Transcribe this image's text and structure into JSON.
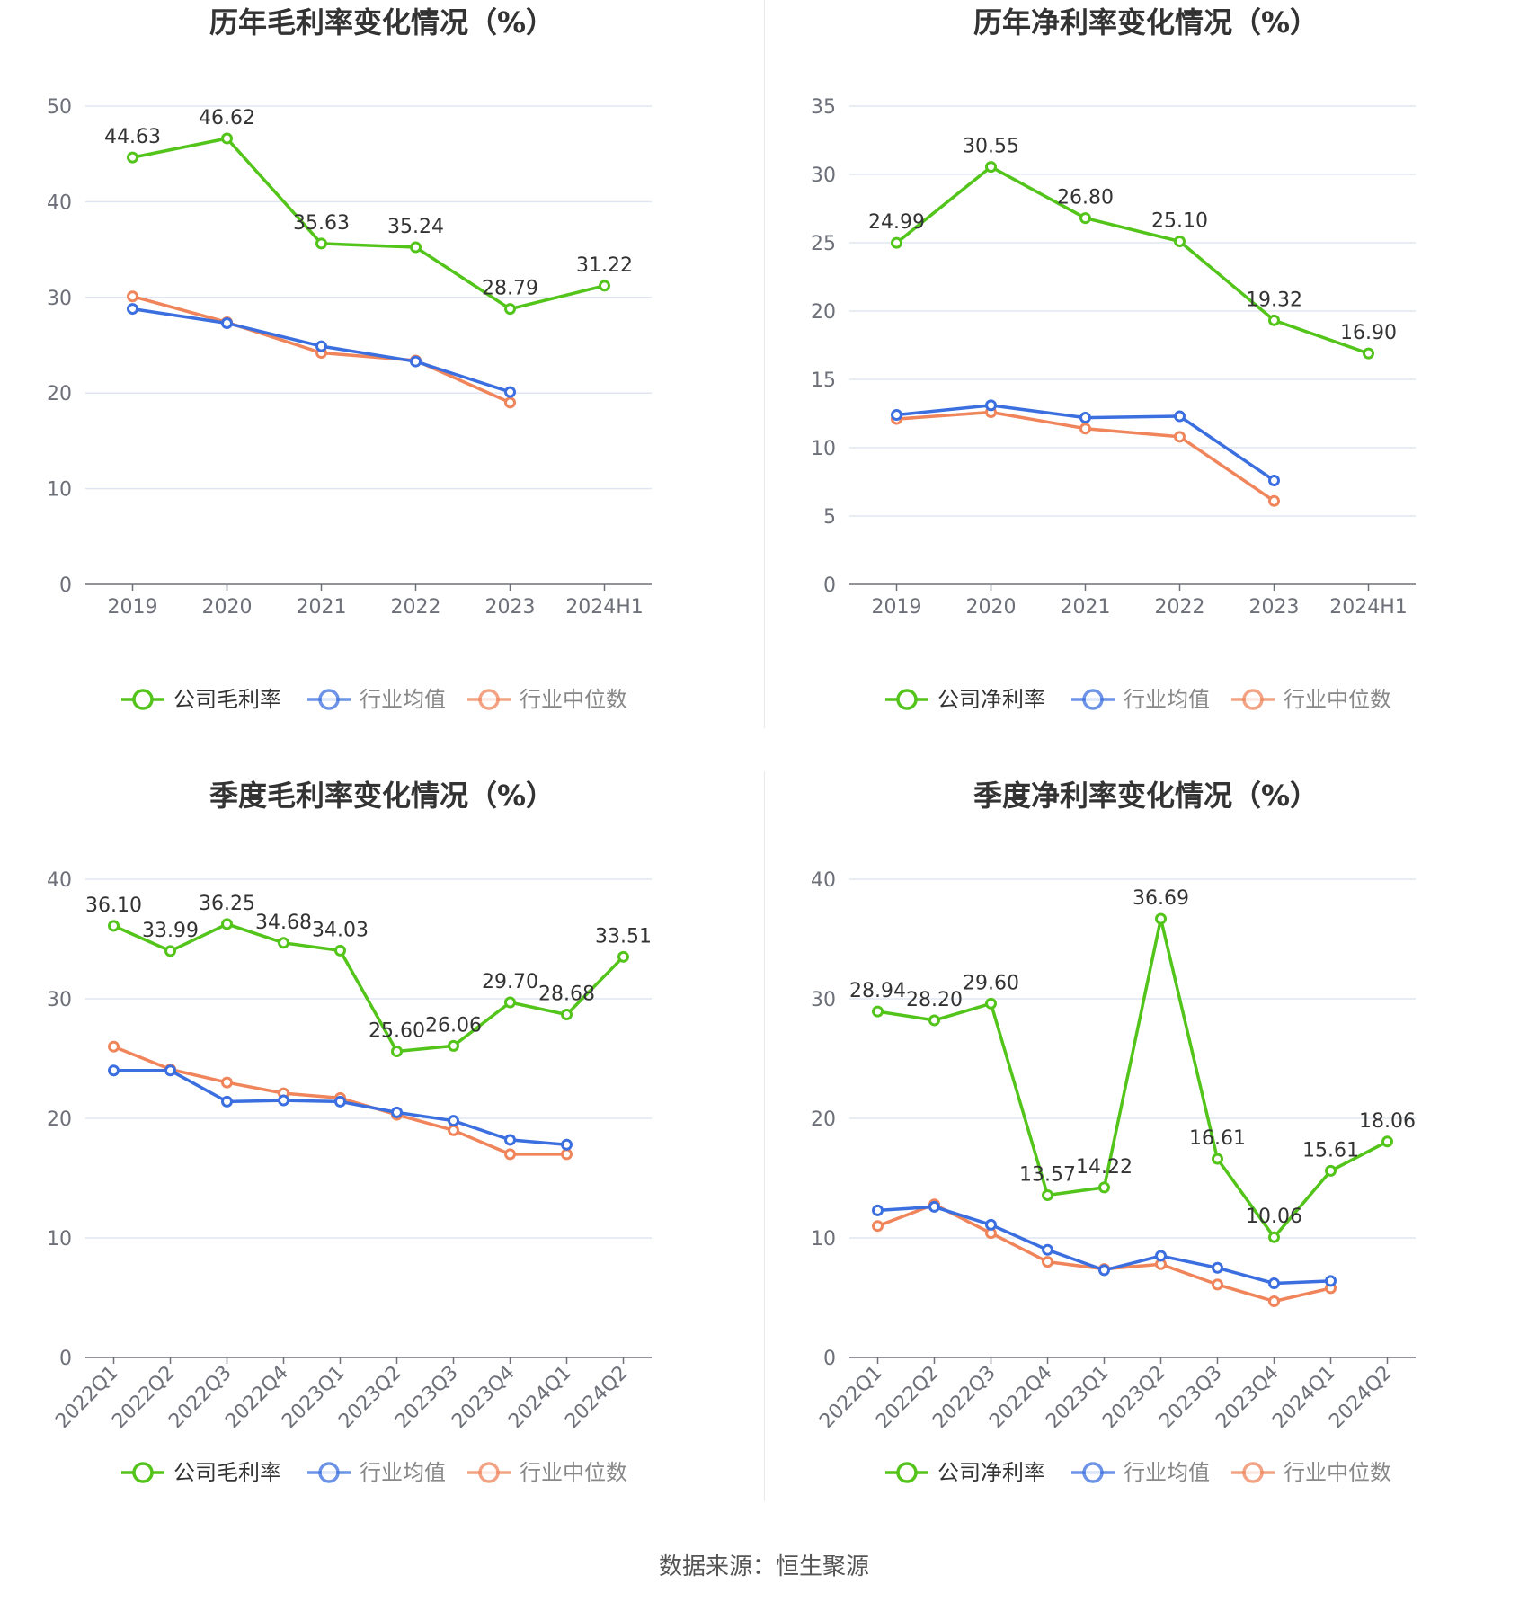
{
  "source": "数据来源：恒生聚源",
  "colors": {
    "company": "#52c41a",
    "avg": "#3b6fe0",
    "median": "#f0845a",
    "grid": "#e0e6f1",
    "axis": "#6e7079",
    "label": "#333333",
    "tick": "#6e7079"
  },
  "chart_data": [
    {
      "type": "line",
      "title": "历年毛利率变化情况（%）",
      "categories": [
        "2019",
        "2020",
        "2021",
        "2022",
        "2023",
        "2024H1"
      ],
      "ylim": [
        0,
        50
      ],
      "yticks": [
        0,
        10,
        20,
        30,
        40,
        50
      ],
      "rotate_x": false,
      "series": [
        {
          "name": "公司毛利率",
          "key": "company",
          "labels": true,
          "values": [
            44.63,
            46.62,
            35.63,
            35.24,
            28.79,
            31.22
          ]
        },
        {
          "name": "行业均值",
          "key": "avg",
          "labels": false,
          "values": [
            28.8,
            27.3,
            24.9,
            23.3,
            20.1,
            null
          ]
        },
        {
          "name": "行业中位数",
          "key": "median",
          "labels": false,
          "values": [
            30.1,
            27.4,
            24.2,
            23.4,
            19.0,
            null
          ]
        }
      ],
      "value_labels": [
        "44.63",
        "46.62",
        "35.63",
        "35.24",
        "28.79",
        "31.22"
      ],
      "legend": [
        "公司毛利率",
        "行业均值",
        "行业中位数"
      ]
    },
    {
      "type": "line",
      "title": "历年净利率变化情况（%）",
      "categories": [
        "2019",
        "2020",
        "2021",
        "2022",
        "2023",
        "2024H1"
      ],
      "ylim": [
        0,
        35
      ],
      "yticks": [
        0,
        5,
        10,
        15,
        20,
        25,
        30,
        35
      ],
      "rotate_x": false,
      "series": [
        {
          "name": "公司净利率",
          "key": "company",
          "labels": true,
          "values": [
            24.99,
            30.55,
            26.8,
            25.1,
            19.32,
            16.9
          ]
        },
        {
          "name": "行业均值",
          "key": "avg",
          "labels": false,
          "values": [
            12.4,
            13.1,
            12.2,
            12.3,
            7.6,
            null
          ]
        },
        {
          "name": "行业中位数",
          "key": "median",
          "labels": false,
          "values": [
            12.1,
            12.6,
            11.4,
            10.8,
            6.1,
            null
          ]
        }
      ],
      "value_labels": [
        "24.99",
        "30.55",
        "26.80",
        "25.10",
        "19.32",
        "16.90"
      ],
      "legend": [
        "公司净利率",
        "行业均值",
        "行业中位数"
      ]
    },
    {
      "type": "line",
      "title": "季度毛利率变化情况（%）",
      "categories": [
        "2022Q1",
        "2022Q2",
        "2022Q3",
        "2022Q4",
        "2023Q1",
        "2023Q2",
        "2023Q3",
        "2023Q4",
        "2024Q1",
        "2024Q2"
      ],
      "ylim": [
        0,
        40
      ],
      "yticks": [
        0,
        10,
        20,
        30,
        40
      ],
      "rotate_x": true,
      "series": [
        {
          "name": "公司毛利率",
          "key": "company",
          "labels": true,
          "values": [
            36.1,
            33.99,
            36.25,
            34.68,
            34.03,
            25.6,
            26.06,
            29.7,
            28.68,
            33.51
          ]
        },
        {
          "name": "行业均值",
          "key": "avg",
          "labels": false,
          "values": [
            24.0,
            24.0,
            21.4,
            21.5,
            21.4,
            20.5,
            19.8,
            18.2,
            17.8,
            null
          ]
        },
        {
          "name": "行业中位数",
          "key": "median",
          "labels": false,
          "values": [
            26.0,
            24.1,
            23.0,
            22.1,
            21.7,
            20.3,
            19.0,
            17.0,
            17.0,
            null
          ]
        }
      ],
      "value_labels": [
        "36.10",
        "33.99",
        "36.25",
        "34.68",
        "34.03",
        "25.60",
        "26.06",
        "29.70",
        "28.68",
        "33.51"
      ],
      "legend": [
        "公司毛利率",
        "行业均值",
        "行业中位数"
      ]
    },
    {
      "type": "line",
      "title": "季度净利率变化情况（%）",
      "categories": [
        "2022Q1",
        "2022Q2",
        "2022Q3",
        "2022Q4",
        "2023Q1",
        "2023Q2",
        "2023Q3",
        "2023Q4",
        "2024Q1",
        "2024Q2"
      ],
      "ylim": [
        0,
        40
      ],
      "yticks": [
        0,
        10,
        20,
        30,
        40
      ],
      "rotate_x": true,
      "series": [
        {
          "name": "公司净利率",
          "key": "company",
          "labels": true,
          "values": [
            28.94,
            28.2,
            29.6,
            13.57,
            14.22,
            36.69,
            16.61,
            10.06,
            15.61,
            18.06
          ]
        },
        {
          "name": "行业均值",
          "key": "avg",
          "labels": false,
          "values": [
            12.3,
            12.6,
            11.1,
            9.0,
            7.3,
            8.5,
            7.5,
            6.2,
            6.4,
            null
          ]
        },
        {
          "name": "行业中位数",
          "key": "median",
          "labels": false,
          "values": [
            11.0,
            12.8,
            10.4,
            8.0,
            7.4,
            7.8,
            6.1,
            4.7,
            5.8,
            null
          ]
        }
      ],
      "value_labels": [
        "28.94",
        "28.20",
        "29.60",
        "13.57",
        "14.22",
        "36.69",
        "16.61",
        "10.06",
        "15.61",
        "18.06"
      ],
      "legend": [
        "公司净利率",
        "行业均值",
        "行业中位数"
      ]
    }
  ]
}
